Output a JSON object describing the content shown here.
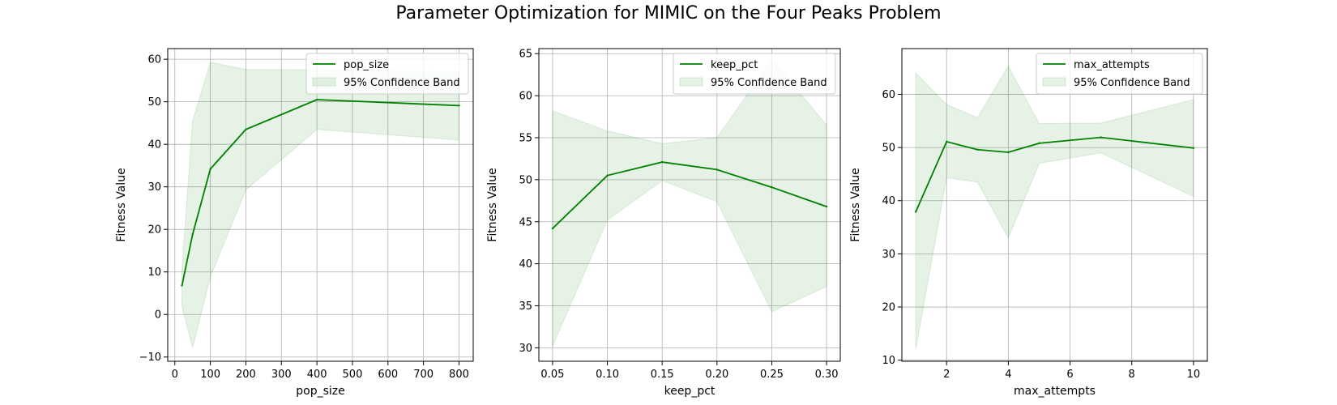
{
  "figure": {
    "title": "Parameter Optimization for MIMIC on the Four Peaks Problem"
  },
  "colors": {
    "line": "#008000",
    "band": "#008000",
    "band_opacity": 0.1,
    "grid": "#b0b0b0"
  },
  "chart_data": [
    {
      "type": "line",
      "xlabel": "pop_size",
      "ylabel": "Fitness Value",
      "xlim": [
        -20,
        840
      ],
      "ylim": [
        -11,
        62.5
      ],
      "xticks": [
        0,
        100,
        200,
        300,
        400,
        500,
        600,
        700,
        800
      ],
      "yticks": [
        -10,
        0,
        10,
        20,
        30,
        40,
        50,
        60
      ],
      "x": [
        20,
        50,
        100,
        200,
        400,
        800
      ],
      "series": [
        {
          "name": "pop_size",
          "values": [
            6.8,
            18.8,
            34.2,
            43.5,
            50.5,
            49.1
          ]
        }
      ],
      "band": {
        "name": "95% Confidence Band",
        "lower": [
          2.0,
          -7.8,
          8.8,
          29.3,
          43.5,
          41.0
        ],
        "upper": [
          10.5,
          45.5,
          59.3,
          57.6,
          57.5,
          57.0
        ]
      },
      "grid": true,
      "legend": "upper right"
    },
    {
      "type": "line",
      "xlabel": "keep_pct",
      "ylabel": "Fitness Value",
      "xlim": [
        0.0375,
        0.3125
      ],
      "ylim": [
        28.4,
        65.6
      ],
      "xticks": [
        "0.05",
        "0.10",
        "0.15",
        "0.20",
        "0.25",
        "0.30"
      ],
      "yticks": [
        30,
        35,
        40,
        45,
        50,
        55,
        60,
        65
      ],
      "x": [
        0.05,
        0.1,
        0.15,
        0.2,
        0.25,
        0.3
      ],
      "series": [
        {
          "name": "keep_pct",
          "values": [
            44.2,
            50.5,
            52.1,
            51.2,
            49.1,
            46.8
          ]
        }
      ],
      "band": {
        "name": "95% Confidence Band",
        "lower": [
          30.2,
          45.2,
          49.9,
          47.4,
          34.3,
          37.3
        ],
        "upper": [
          58.2,
          55.8,
          54.3,
          55.0,
          64.3,
          56.5
        ]
      },
      "grid": true,
      "legend": "upper right"
    },
    {
      "type": "line",
      "xlabel": "max_attempts",
      "ylabel": "Fitness Value",
      "xlim": [
        0.55,
        10.45
      ],
      "ylim": [
        9.8,
        68.6
      ],
      "xticks": [
        2,
        4,
        6,
        8,
        10
      ],
      "yticks": [
        10,
        20,
        30,
        40,
        50,
        60
      ],
      "x": [
        1,
        2,
        3,
        4,
        5,
        7,
        10
      ],
      "series": [
        {
          "name": "max_attempts",
          "values": [
            37.9,
            51.1,
            49.6,
            49.1,
            50.8,
            51.9,
            49.9
          ]
        }
      ],
      "band": {
        "name": "95% Confidence Band",
        "lower": [
          12.1,
          44.3,
          43.5,
          33.0,
          47.0,
          49.0,
          40.8
        ],
        "upper": [
          64.0,
          58.1,
          55.6,
          65.3,
          54.5,
          54.6,
          59.0
        ]
      },
      "grid": true,
      "legend": "upper right"
    }
  ]
}
